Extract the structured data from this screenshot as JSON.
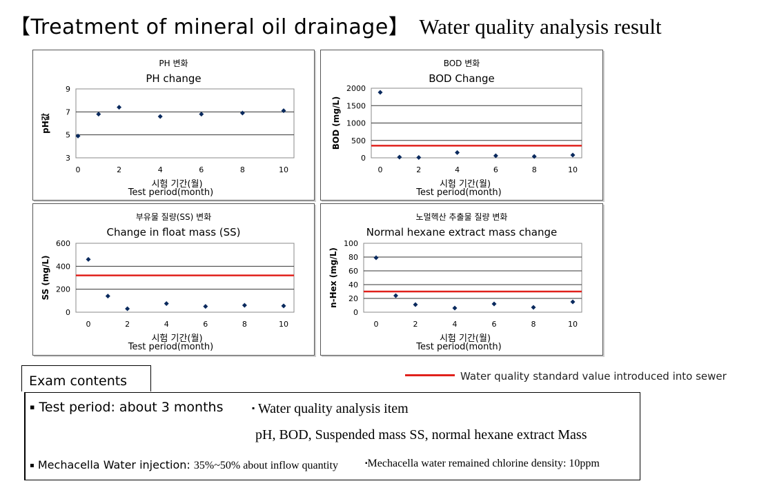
{
  "page": {
    "title_part1": "【Treatment of mineral oil drainage】",
    "title_part2": "Water quality analysis result"
  },
  "legend": {
    "label": "Water quality standard value introduced into sewer",
    "line_color": "#e0201b"
  },
  "exam": {
    "tab_label": "Exam contents",
    "bullet_glyph": "▪",
    "test_period": "Test period: about 3 months",
    "analysis_item_label": "Water quality analysis item",
    "analysis_items": "pH, BOD, Suspended mass SS, normal hexane extract Mass",
    "injection_label": "Mechacella Water injection: ",
    "injection_value": "35%~50%  about inflow quantity",
    "chlorine_text": "Mechacella  water remained chlorine density: 10ppm"
  },
  "chart_data": [
    {
      "type": "scatter",
      "title_ko": "PH 변화",
      "title": "PH change",
      "ylabel": "pH값",
      "xlabel_ko": "시험 기간(월)",
      "xlabel": "Test period(month)",
      "x_ticks": [
        0,
        2,
        4,
        6,
        8,
        10
      ],
      "y_ticks": [
        3,
        5,
        7,
        9
      ],
      "ylim": [
        3,
        9
      ],
      "x": [
        0,
        1,
        2,
        4,
        6,
        8,
        10
      ],
      "y": [
        4.9,
        6.8,
        7.4,
        6.6,
        6.8,
        6.9,
        7.1
      ],
      "reference_lines": [],
      "gridlines": [
        5,
        7
      ],
      "marker_color": "#0a2a5e"
    },
    {
      "type": "scatter",
      "title_ko": "BOD 변화",
      "title": "BOD Change",
      "ylabel": "BOD (mg/L)",
      "xlabel_ko": "시험 기간(월)",
      "xlabel": "Test period(month)",
      "x_ticks": [
        0,
        2,
        4,
        6,
        8,
        10
      ],
      "y_ticks": [
        0,
        500,
        1000,
        1500,
        2000
      ],
      "ylim": [
        0,
        2000
      ],
      "x": [
        0,
        1,
        2,
        4,
        6,
        8,
        10
      ],
      "y": [
        1880,
        20,
        10,
        150,
        60,
        40,
        80
      ],
      "reference_lines": [
        350
      ],
      "gridlines": [
        500,
        1000,
        1500
      ],
      "marker_color": "#0a2a5e"
    },
    {
      "type": "scatter",
      "title_ko": "부유물 질량(SS) 변화",
      "title": "Change in float mass (SS)",
      "ylabel": "SS (mg/L)",
      "xlabel_ko": "시험 기간(월)",
      "xlabel": "Test period(month)",
      "x_ticks": [
        0,
        2,
        4,
        6,
        8,
        10
      ],
      "y_ticks": [
        0,
        200,
        400,
        600
      ],
      "ylim": [
        0,
        600
      ],
      "x": [
        0,
        1,
        2,
        4,
        6,
        8,
        10
      ],
      "y": [
        460,
        140,
        30,
        75,
        50,
        60,
        55
      ],
      "reference_lines": [
        320
      ],
      "gridlines": [
        200,
        400
      ],
      "marker_color": "#0a2a5e"
    },
    {
      "type": "scatter",
      "title_ko": "노멀헥산 추출물 질량 변화",
      "title": "Normal hexane extract mass change",
      "ylabel": "n-Hex (mg/L)",
      "xlabel_ko": "시험 기간(월)",
      "xlabel": "Test period(month)",
      "x_ticks": [
        0,
        2,
        4,
        6,
        8,
        10
      ],
      "y_ticks": [
        0,
        20,
        40,
        60,
        80,
        100
      ],
      "ylim": [
        0,
        100
      ],
      "x": [
        0,
        1,
        2,
        4,
        6,
        8,
        10
      ],
      "y": [
        79,
        24,
        11,
        6,
        12,
        7,
        15
      ],
      "reference_lines": [
        30
      ],
      "gridlines": [
        20,
        40,
        60,
        80
      ],
      "marker_color": "#0a2a5e"
    }
  ]
}
